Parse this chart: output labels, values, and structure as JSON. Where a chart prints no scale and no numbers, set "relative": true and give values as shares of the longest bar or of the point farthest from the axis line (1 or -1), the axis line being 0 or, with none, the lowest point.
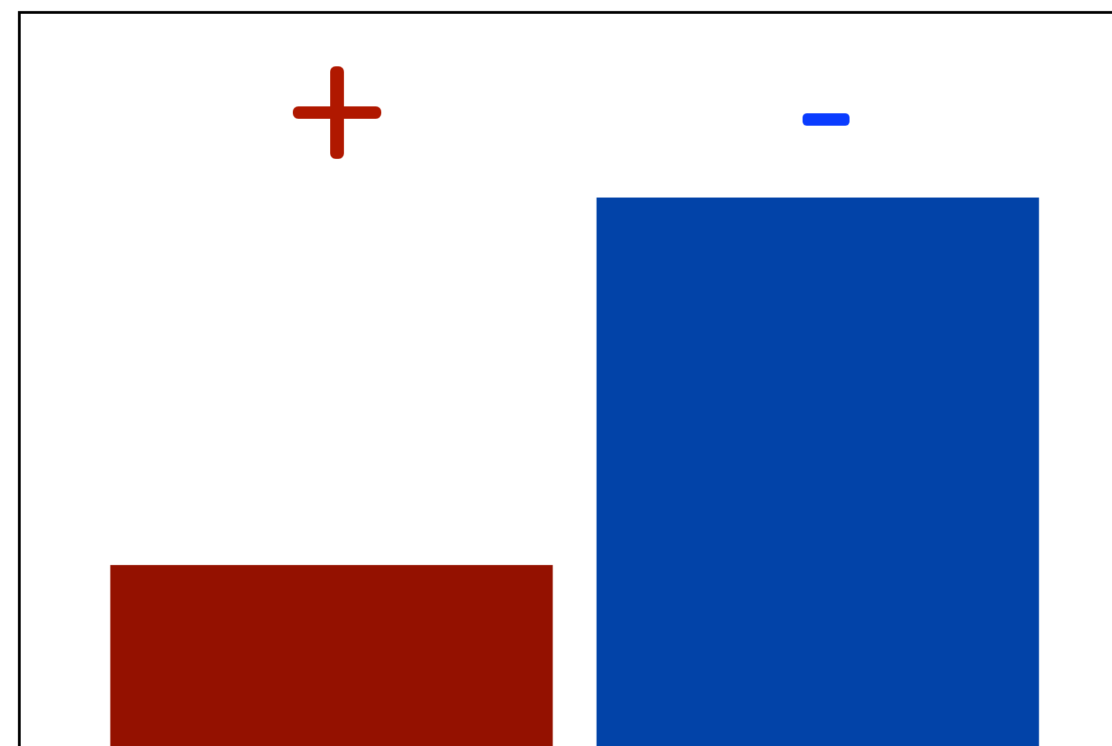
{
  "chart_data": {
    "type": "bar",
    "relative": true,
    "categories": [
      null,
      null
    ],
    "series": [
      {
        "colors": [
          "#941100",
          "#0243a8"
        ],
        "values": [
          0.33,
          1
        ]
      }
    ]
  }
}
